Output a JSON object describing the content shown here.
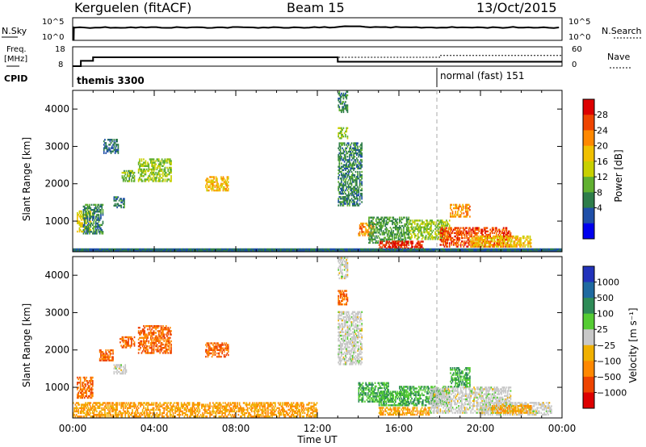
{
  "header": {
    "station": "Kerguelen (fitACF)",
    "beam": "Beam 15",
    "date": "13/Oct/2015"
  },
  "noise_panel": {
    "left_label": "N.Sky",
    "right_label": "N.Search",
    "left_ticks": [
      "10^5",
      "10^0"
    ],
    "right_ticks": [
      "10^5",
      "10^0"
    ]
  },
  "freq_panel": {
    "left_label_1": "Freq.",
    "left_label_2": "[MHz]",
    "right_label": "Nave",
    "left_ticks": [
      "18",
      "8"
    ],
    "right_ticks": [
      "60",
      "0"
    ]
  },
  "cpid_panel": {
    "label": "CPID",
    "modes": [
      {
        "name": "themis 3300"
      },
      {
        "name": "normal (fast) 151"
      }
    ]
  },
  "power_panel": {
    "ylabel": "Slant Range [km]",
    "colorbar_label": "Power [dB]",
    "colorbar_ticks": [
      "28",
      "24",
      "20",
      "16",
      "12",
      "8",
      "4"
    ],
    "colors": [
      "#dd0000",
      "#ee4400",
      "#ff8800",
      "#f0c000",
      "#c8d000",
      "#60b030",
      "#2e7d4a",
      "#1f4fa8",
      "#0000ee"
    ]
  },
  "velocity_panel": {
    "ylabel": "Slant Range [km]",
    "colorbar_label": "Velocity  [m s⁻¹]",
    "colorbar_ticks": [
      "1000",
      "500",
      "100",
      "25",
      "−25",
      "−100",
      "−500",
      "−1000"
    ],
    "colors": [
      "#2233bb",
      "#1f6aa0",
      "#2e8b57",
      "#55cc33",
      "#c8c8c8",
      "#f0b000",
      "#ff8800",
      "#ee4400",
      "#dd0000"
    ]
  },
  "chart_data": {
    "type": "heatmap",
    "xlabel": "Time UT",
    "x_ticks": [
      "00:00",
      "04:00",
      "08:00",
      "12:00",
      "16:00",
      "20:00",
      "00:00"
    ],
    "xlim_hours": [
      0,
      24
    ],
    "ylim_km": [
      180,
      4500
    ],
    "y_ticks": [
      1000,
      2000,
      3000,
      4000
    ],
    "mode_change_hour": 18,
    "freq_mhz": [
      {
        "start": 0.0,
        "end": 0.4,
        "value": 8
      },
      {
        "start": 0.4,
        "end": 1.0,
        "value": 11
      },
      {
        "start": 1.0,
        "end": 13.0,
        "value": 13
      },
      {
        "start": 13.0,
        "end": 24.0,
        "value": 10.5
      }
    ],
    "nave": [
      {
        "start": 1.0,
        "end": 13.0,
        "value": 30
      },
      {
        "start": 13.0,
        "end": 18.0,
        "value": 30
      },
      {
        "start": 18.0,
        "end": 24.0,
        "value": 36
      }
    ],
    "power_regions": [
      {
        "t": [
          0.2,
          0.9
        ],
        "r": [
          700,
          1250
        ],
        "level": 16
      },
      {
        "t": [
          0.5,
          1.5
        ],
        "r": [
          650,
          1450
        ],
        "level": 6
      },
      {
        "t": [
          2.0,
          2.5
        ],
        "r": [
          1350,
          1650
        ],
        "level": 6
      },
      {
        "t": [
          2.4,
          3.0
        ],
        "r": [
          2050,
          2350
        ],
        "level": 10
      },
      {
        "t": [
          3.2,
          4.8
        ],
        "r": [
          2050,
          2650
        ],
        "level": 12
      },
      {
        "t": [
          6.5,
          7.6
        ],
        "r": [
          1800,
          2200
        ],
        "level": 18
      },
      {
        "t": [
          1.5,
          2.2
        ],
        "r": [
          2800,
          3200
        ],
        "level": 4
      },
      {
        "t": [
          13.0,
          13.5
        ],
        "r": [
          3900,
          4450
        ],
        "level": 6
      },
      {
        "t": [
          13.0,
          13.5
        ],
        "r": [
          3200,
          3500
        ],
        "level": 12
      },
      {
        "t": [
          13.0,
          14.2
        ],
        "r": [
          1400,
          3100
        ],
        "level": 6
      },
      {
        "t": [
          14.0,
          14.8
        ],
        "r": [
          600,
          950
        ],
        "level": 22
      },
      {
        "t": [
          14.5,
          16.5
        ],
        "r": [
          400,
          1100
        ],
        "level": 8
      },
      {
        "t": [
          15.0,
          17.2
        ],
        "r": [
          250,
          450
        ],
        "level": 28
      },
      {
        "t": [
          16.5,
          18.5
        ],
        "r": [
          500,
          1000
        ],
        "level": 12
      },
      {
        "t": [
          18.0,
          21.5
        ],
        "r": [
          300,
          800
        ],
        "level": 26
      },
      {
        "t": [
          18.5,
          19.5
        ],
        "r": [
          1100,
          1450
        ],
        "level": 22
      },
      {
        "t": [
          19.5,
          22.5
        ],
        "r": [
          300,
          600
        ],
        "level": 18
      },
      {
        "t": [
          0.0,
          24.0
        ],
        "r": [
          180,
          260
        ],
        "level": 4
      }
    ],
    "velocity_regions": [
      {
        "t": [
          0.2,
          1.0
        ],
        "r": [
          700,
          1250
        ],
        "v": -500
      },
      {
        "t": [
          1.3,
          2.0
        ],
        "r": [
          1700,
          2000
        ],
        "v": -500
      },
      {
        "t": [
          2.3,
          3.0
        ],
        "r": [
          2050,
          2350
        ],
        "v": -500
      },
      {
        "t": [
          3.2,
          4.8
        ],
        "r": [
          1900,
          2650
        ],
        "v": -500
      },
      {
        "t": [
          6.5,
          7.6
        ],
        "r": [
          1800,
          2200
        ],
        "v": -500
      },
      {
        "t": [
          2.0,
          2.6
        ],
        "r": [
          1350,
          1600
        ],
        "v": 0
      },
      {
        "t": [
          0.0,
          12.0
        ],
        "r": [
          200,
          600
        ],
        "v": -100
      },
      {
        "t": [
          13.0,
          13.5
        ],
        "r": [
          3900,
          4450
        ],
        "v": 0
      },
      {
        "t": [
          13.0,
          13.5
        ],
        "r": [
          3200,
          3600
        ],
        "v": -500
      },
      {
        "t": [
          13.0,
          14.2
        ],
        "r": [
          1600,
          3000
        ],
        "v": 0
      },
      {
        "t": [
          14.0,
          15.5
        ],
        "r": [
          600,
          1100
        ],
        "v": 100
      },
      {
        "t": [
          15.0,
          16.5
        ],
        "r": [
          500,
          900
        ],
        "v": 100
      },
      {
        "t": [
          16.0,
          18.5
        ],
        "r": [
          500,
          1000
        ],
        "v": 100
      },
      {
        "t": [
          15.0,
          17.5
        ],
        "r": [
          250,
          450
        ],
        "v": -100
      },
      {
        "t": [
          17.5,
          21.5
        ],
        "r": [
          300,
          1000
        ],
        "v": 0
      },
      {
        "t": [
          18.5,
          19.5
        ],
        "r": [
          1000,
          1500
        ],
        "v": 100
      },
      {
        "t": [
          20.0,
          23.5
        ],
        "r": [
          250,
          600
        ],
        "v": 0
      },
      {
        "t": [
          20.5,
          22.5
        ],
        "r": [
          300,
          500
        ],
        "v": -100
      }
    ]
  }
}
